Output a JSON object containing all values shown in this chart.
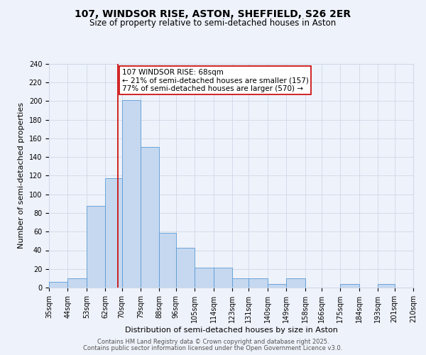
{
  "title": "107, WINDSOR RISE, ASTON, SHEFFIELD, S26 2ER",
  "subtitle": "Size of property relative to semi-detached houses in Aston",
  "xlabel": "Distribution of semi-detached houses by size in Aston",
  "ylabel": "Number of semi-detached properties",
  "bin_labels": [
    "35sqm",
    "44sqm",
    "53sqm",
    "62sqm",
    "70sqm",
    "79sqm",
    "88sqm",
    "96sqm",
    "105sqm",
    "114sqm",
    "123sqm",
    "131sqm",
    "140sqm",
    "149sqm",
    "158sqm",
    "166sqm",
    "175sqm",
    "184sqm",
    "193sqm",
    "201sqm",
    "210sqm"
  ],
  "bin_edges": [
    35,
    44,
    53,
    62,
    70,
    79,
    88,
    96,
    105,
    114,
    123,
    131,
    140,
    149,
    158,
    166,
    175,
    184,
    193,
    201,
    210
  ],
  "counts": [
    6,
    10,
    88,
    117,
    201,
    151,
    59,
    43,
    21,
    21,
    10,
    10,
    4,
    10,
    0,
    0,
    4,
    0,
    4,
    0,
    0
  ],
  "bar_color": "#c5d8f0",
  "bar_edge_color": "#5b9bd5",
  "property_value": 68,
  "red_line_color": "#cc0000",
  "annotation_line1": "107 WINDSOR RISE: 68sqm",
  "annotation_line2": "← 21% of semi-detached houses are smaller (157)",
  "annotation_line3": "77% of semi-detached houses are larger (570) →",
  "annotation_box_color": "#ffffff",
  "annotation_box_edge": "#cc0000",
  "ylim": [
    0,
    240
  ],
  "yticks": [
    0,
    20,
    40,
    60,
    80,
    100,
    120,
    140,
    160,
    180,
    200,
    220,
    240
  ],
  "grid_color": "#d0d8e8",
  "background_color": "#eef2fa",
  "footer1": "Contains HM Land Registry data © Crown copyright and database right 2025.",
  "footer2": "Contains public sector information licensed under the Open Government Licence v3.0.",
  "title_fontsize": 10,
  "subtitle_fontsize": 8.5,
  "axis_label_fontsize": 8,
  "tick_label_fontsize": 7,
  "annotation_fontsize": 7.5,
  "footer_fontsize": 6
}
